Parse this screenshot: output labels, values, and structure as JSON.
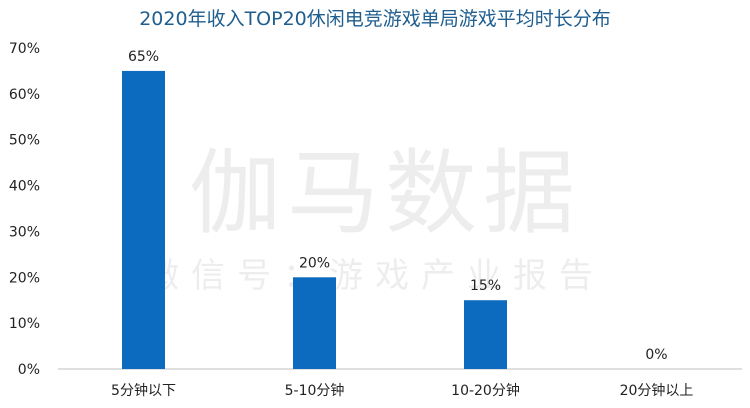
{
  "chart_data": {
    "type": "bar",
    "title": "2020年收入TOP20休闲电竞游戏单局游戏平均时长分布",
    "categories": [
      "5分钟以下",
      "5-10分钟",
      "10-20分钟",
      "20分钟以上"
    ],
    "values": [
      65,
      20,
      15,
      0
    ],
    "data_labels": [
      "65%",
      "20%",
      "15%",
      "0%"
    ],
    "y_ticks": [
      "0%",
      "10%",
      "20%",
      "30%",
      "40%",
      "50%",
      "60%",
      "70%"
    ],
    "ylim": [
      0,
      70
    ],
    "grid": false,
    "bar_color": "#0c6bbf",
    "title_color": "#1f5e8f"
  },
  "watermark": {
    "line1": "伽马数据",
    "line2": "微信号：游戏产业报告"
  }
}
